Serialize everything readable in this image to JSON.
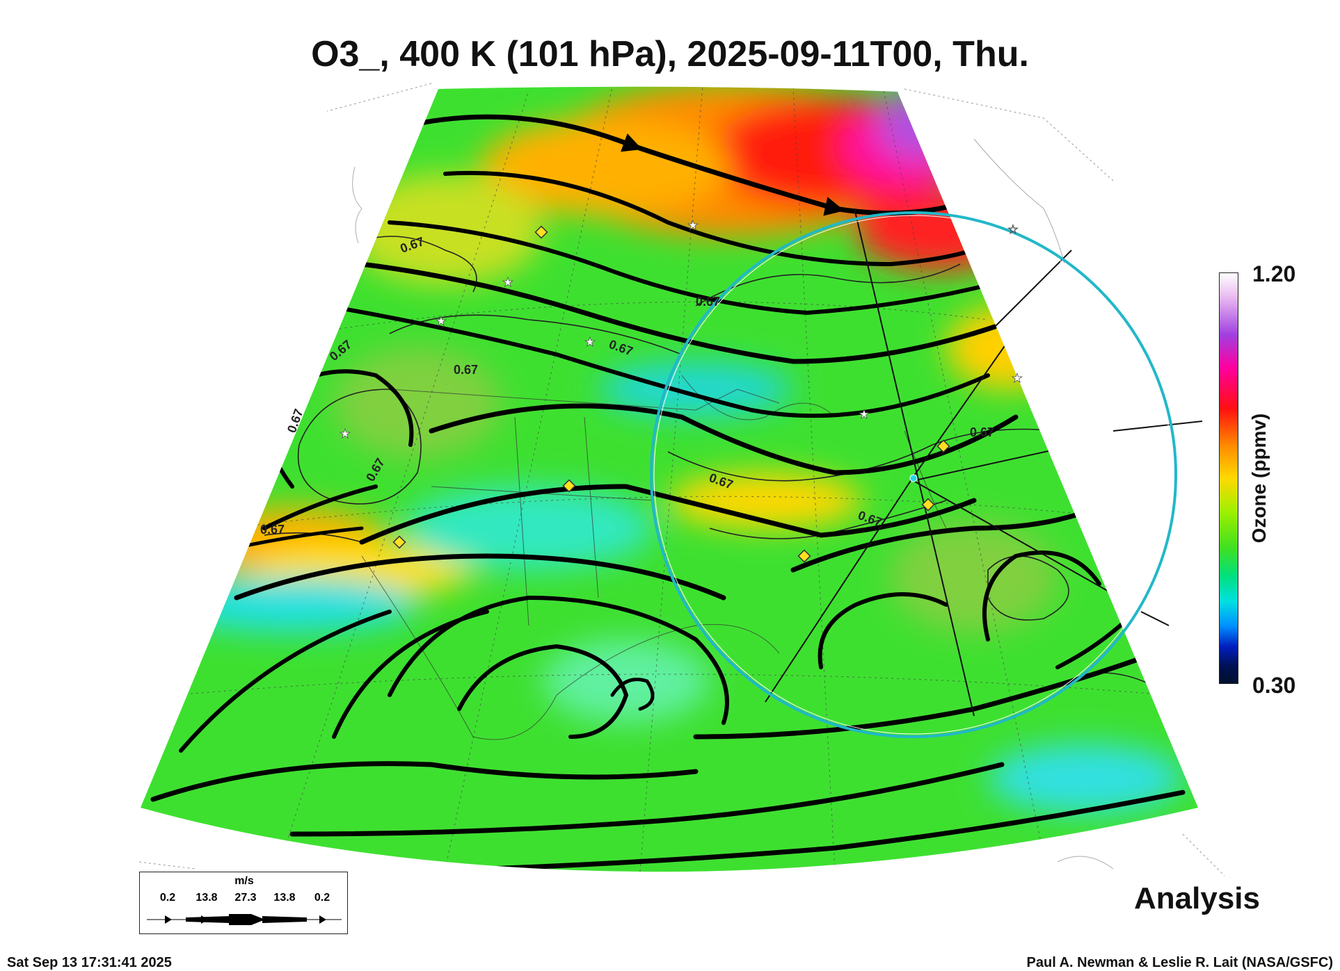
{
  "title": "O3_, 400 K (101 hPa), 2025-09-11T00, Thu.",
  "colorbar": {
    "max_label": "1.20",
    "min_label": "0.30",
    "unit_label": "Ozone (ppmv)",
    "range": [
      0.3,
      1.2
    ]
  },
  "contour_labels": [
    "0.67",
    "0.67",
    "0.67",
    "0.67",
    "0.67",
    "0.67",
    "0.67",
    "0.67",
    "0.67",
    "0.67"
  ],
  "wind_legend": {
    "unit": "m/s",
    "values": [
      "0.2",
      "13.8",
      "27.3",
      "13.8",
      "0.2"
    ]
  },
  "analysis_label": "Analysis",
  "timestamp": "Sat Sep 13 17:31:41 2025",
  "credit": "Paul A. Newman & Leslie R. Lait (NASA/GSFC)",
  "colors": {
    "field_base": "#40e020",
    "cyan_circle": "#22b8c8"
  }
}
